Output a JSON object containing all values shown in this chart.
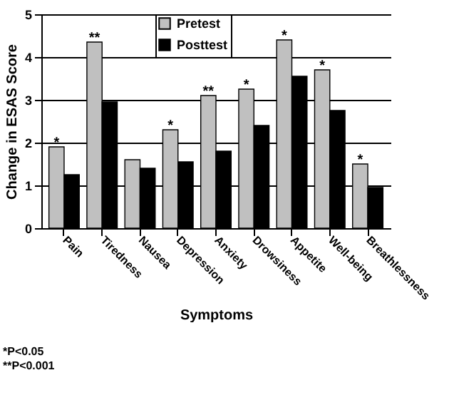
{
  "chart_data": {
    "type": "bar",
    "xlabel": "Symptoms",
    "ylabel": "Change in ESAS Score",
    "categories": [
      "Pain",
      "Tiredness",
      "Nausea",
      "Depression",
      "Anxiety",
      "Drowsiness",
      "Appetite",
      "Well-being",
      "Breathlessness"
    ],
    "series": [
      {
        "name": "Pretest",
        "color": "#c0c0c0",
        "values": [
          1.9,
          4.35,
          1.6,
          2.3,
          3.1,
          3.25,
          4.4,
          3.7,
          1.5
        ]
      },
      {
        "name": "Posttest",
        "color": "#000000",
        "values": [
          1.25,
          2.95,
          1.4,
          1.55,
          1.8,
          2.4,
          3.55,
          2.75,
          0.95
        ]
      }
    ],
    "ylim": [
      0,
      5
    ],
    "yticks": [
      0,
      1,
      2,
      3,
      4,
      5
    ],
    "grid": "y",
    "legend": "top",
    "annotations": [
      {
        "text": "*",
        "x": "Pain",
        "y": 1.9
      },
      {
        "text": "**",
        "x": "Tiredness",
        "y": 4.35
      },
      {
        "text": "*",
        "x": "Depression",
        "y": 2.3
      },
      {
        "text": "**",
        "x": "Anxiety",
        "y": 3.1
      },
      {
        "text": "*",
        "x": "Drowsiness",
        "y": 3.25
      },
      {
        "text": "*",
        "x": "Appetite",
        "y": 4.4
      },
      {
        "text": "*",
        "x": "Well-being",
        "y": 3.7
      },
      {
        "text": "*",
        "x": "Breathlessness",
        "y": 1.5
      },
      "*P<0.05",
      "**P<0.001"
    ]
  }
}
